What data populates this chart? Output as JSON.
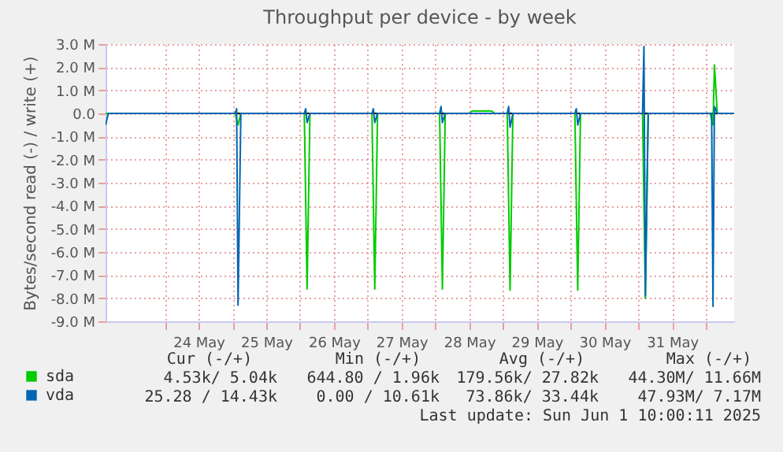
{
  "chart_data": {
    "type": "line",
    "title": "Throughput per device - by week",
    "ylabel": "Bytes/second read (-) / write (+)",
    "xlim": [
      "2025-05-23T03:00",
      "2025-06-01T10:00"
    ],
    "xticks": [
      {
        "value": "2025-05-24T00:00",
        "label": null
      },
      {
        "value": "2025-05-24T12:00",
        "label": "24 May"
      },
      {
        "value": "2025-05-25T00:00",
        "label": null
      },
      {
        "value": "2025-05-25T12:00",
        "label": "25 May"
      },
      {
        "value": "2025-05-26T00:00",
        "label": null
      },
      {
        "value": "2025-05-26T12:00",
        "label": "26 May"
      },
      {
        "value": "2025-05-27T00:00",
        "label": null
      },
      {
        "value": "2025-05-27T12:00",
        "label": "27 May"
      },
      {
        "value": "2025-05-28T00:00",
        "label": null
      },
      {
        "value": "2025-05-28T12:00",
        "label": "28 May"
      },
      {
        "value": "2025-05-29T00:00",
        "label": null
      },
      {
        "value": "2025-05-29T12:00",
        "label": "29 May"
      },
      {
        "value": "2025-05-30T00:00",
        "label": null
      },
      {
        "value": "2025-05-30T12:00",
        "label": "30 May"
      },
      {
        "value": "2025-05-31T00:00",
        "label": null
      },
      {
        "value": "2025-05-31T12:00",
        "label": "31 May"
      },
      {
        "value": "2025-06-01T00:00",
        "label": null
      }
    ],
    "ylim": [
      -9,
      3
    ],
    "yticks": [
      {
        "value": -9,
        "label": "-9.0 M"
      },
      {
        "value": -8,
        "label": "-8.0 M"
      },
      {
        "value": -7,
        "label": "-7.0 M"
      },
      {
        "value": -6,
        "label": "-6.0 M"
      },
      {
        "value": -5,
        "label": "-5.0 M"
      },
      {
        "value": -4,
        "label": "-4.0 M"
      },
      {
        "value": -3,
        "label": "-3.0 M"
      },
      {
        "value": -2,
        "label": "-2.0 M"
      },
      {
        "value": -1,
        "label": "-1.0 M"
      },
      {
        "value": 0,
        "label": "0.0"
      },
      {
        "value": 1,
        "label": "1.0 M"
      },
      {
        "value": 2,
        "label": "2.0 M"
      },
      {
        "value": 3,
        "label": "3.0 M"
      }
    ],
    "grid": true,
    "legend": "bottom left",
    "marker": "none",
    "line_style": "solid",
    "ref_lines": [
      {
        "axis": "y",
        "value": 0,
        "color": "#000000"
      }
    ],
    "series": [
      {
        "name": "sda",
        "color": "#00cc00",
        "x": [
          "2025-05-23T03:00",
          "2025-05-25T01:00",
          "2025-05-25T02:00",
          "2025-05-25T03:00",
          "2025-05-26T01:30",
          "2025-05-26T02:30",
          "2025-05-26T03:30",
          "2025-05-27T01:30",
          "2025-05-27T02:30",
          "2025-05-27T03:30",
          "2025-05-28T01:30",
          "2025-05-28T02:30",
          "2025-05-28T03:30",
          "2025-05-28T12:00",
          "2025-05-28T13:00",
          "2025-05-28T20:00",
          "2025-05-28T21:00",
          "2025-05-29T01:30",
          "2025-05-29T02:30",
          "2025-05-29T03:30",
          "2025-05-30T01:30",
          "2025-05-30T02:30",
          "2025-05-30T03:30",
          "2025-05-31T01:30",
          "2025-05-31T02:30",
          "2025-05-31T03:30",
          "2025-06-01T01:30",
          "2025-06-01T02:30",
          "2025-06-01T03:00",
          "2025-06-01T04:00",
          "2025-06-01T10:00"
        ],
        "values": [
          0,
          0,
          -0.5,
          0,
          0,
          -7.6,
          0,
          0,
          -7.6,
          0,
          0,
          -7.6,
          0,
          0,
          0.1,
          0.1,
          0,
          0,
          -7.65,
          0,
          0,
          -7.65,
          0,
          0,
          -8.0,
          0,
          0,
          -0.5,
          2.1,
          0,
          0
        ]
      },
      {
        "name": "vda",
        "color": "#0066b3",
        "x": [
          "2025-05-23T03:00",
          "2025-05-23T04:00",
          "2025-05-25T01:00",
          "2025-05-25T01:30",
          "2025-05-25T02:00",
          "2025-05-25T03:00",
          "2025-05-26T01:30",
          "2025-05-26T02:00",
          "2025-05-26T02:30",
          "2025-05-26T03:30",
          "2025-05-27T01:30",
          "2025-05-27T02:00",
          "2025-05-27T02:30",
          "2025-05-27T03:30",
          "2025-05-28T01:30",
          "2025-05-28T02:00",
          "2025-05-28T02:30",
          "2025-05-28T03:30",
          "2025-05-29T01:30",
          "2025-05-29T02:00",
          "2025-05-29T02:30",
          "2025-05-29T03:30",
          "2025-05-30T01:30",
          "2025-05-30T02:00",
          "2025-05-30T02:30",
          "2025-05-30T03:30",
          "2025-05-31T01:30",
          "2025-05-31T02:00",
          "2025-05-31T02:30",
          "2025-05-31T03:30",
          "2025-06-01T02:00",
          "2025-06-01T02:30",
          "2025-06-01T03:00",
          "2025-06-01T04:00",
          "2025-06-01T10:00"
        ],
        "values": [
          -0.5,
          0,
          0,
          0.2,
          -8.3,
          0,
          0,
          0.2,
          -0.4,
          0,
          0,
          0.2,
          -0.4,
          0,
          0,
          0.3,
          -0.4,
          0,
          0,
          0.3,
          -0.6,
          0,
          0,
          0.2,
          -0.5,
          0,
          0,
          2.9,
          -7.9,
          0,
          0,
          -8.35,
          0.3,
          0,
          0
        ]
      }
    ],
    "annotations": [
      "Cur (-/+)",
      "Min (-/+)",
      "Avg (-/+)",
      "Max (-/+)",
      "4.53k/ 5.04k",
      "644.80 / 1.96k",
      "179.56k/ 27.82k",
      "44.30M/ 11.66M",
      "25.28 / 14.43k",
      "0.00 / 10.61k",
      "73.86k/ 33.44k",
      "47.93M/ 7.17M",
      "Last update: Sun Jun 1 10:00:11 2025"
    ]
  }
}
